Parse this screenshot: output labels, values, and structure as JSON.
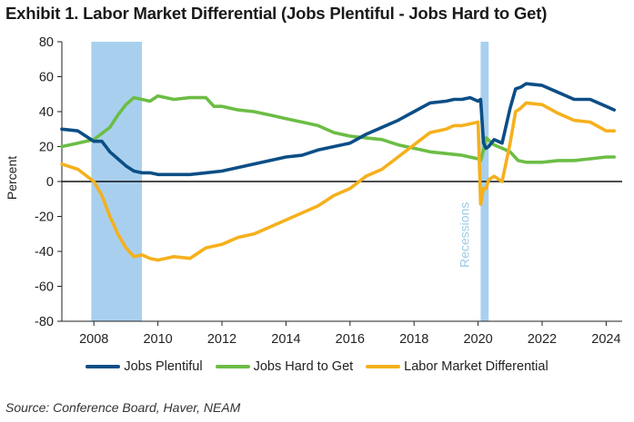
{
  "title": "Exhibit 1. Labor Market Differential (Jobs Plentiful - Jobs Hard to Get)",
  "source": "Source: Conference Board, Haver, NEAM",
  "chart_data": {
    "type": "line",
    "ylabel": "Percent",
    "ylim": [
      -80,
      80
    ],
    "yticks": [
      -80,
      -60,
      -40,
      -20,
      0,
      20,
      40,
      60,
      80
    ],
    "xlim": [
      2007,
      2024.5
    ],
    "xticks": [
      2008,
      2010,
      2012,
      2014,
      2016,
      2018,
      2020,
      2022,
      2024
    ],
    "grid": false,
    "legend_position": "bottom",
    "recessions": [
      {
        "start": 2007.92,
        "end": 2009.5
      },
      {
        "start": 2020.08,
        "end": 2020.33,
        "label": "Recessions"
      }
    ],
    "recession_color": "#a8d0ee",
    "series": [
      {
        "name": "Jobs Plentiful",
        "color": "#0c4e86",
        "x": [
          2007.0,
          2007.5,
          2008.0,
          2008.25,
          2008.5,
          2008.75,
          2009.0,
          2009.25,
          2009.5,
          2009.75,
          2010.0,
          2010.5,
          2011.0,
          2011.5,
          2012.0,
          2012.5,
          2013.0,
          2013.5,
          2014.0,
          2014.5,
          2015.0,
          2015.5,
          2016.0,
          2016.5,
          2017.0,
          2017.5,
          2018.0,
          2018.5,
          2019.0,
          2019.25,
          2019.5,
          2019.75,
          2020.0,
          2020.08,
          2020.17,
          2020.25,
          2020.33,
          2020.5,
          2020.75,
          2021.0,
          2021.17,
          2021.33,
          2021.5,
          2022.0,
          2022.5,
          2023.0,
          2023.5,
          2024.0,
          2024.25
        ],
        "values": [
          30,
          29,
          23,
          23,
          17,
          13,
          9,
          6,
          5,
          5,
          4,
          4,
          4,
          5,
          6,
          8,
          10,
          12,
          14,
          15,
          18,
          20,
          22,
          27,
          31,
          35,
          40,
          45,
          46,
          47,
          47,
          48,
          46,
          47,
          22,
          19,
          20,
          24,
          22,
          42,
          53,
          54,
          56,
          55,
          51,
          47,
          47,
          43,
          41
        ]
      },
      {
        "name": "Jobs Hard to Get",
        "color": "#6cbd45",
        "x": [
          2007.0,
          2007.5,
          2008.0,
          2008.5,
          2008.75,
          2009.0,
          2009.25,
          2009.5,
          2009.75,
          2010.0,
          2010.5,
          2011.0,
          2011.5,
          2011.75,
          2012.0,
          2012.5,
          2013.0,
          2013.5,
          2014.0,
          2014.5,
          2015.0,
          2015.5,
          2016.0,
          2016.5,
          2017.0,
          2017.5,
          2018.0,
          2018.5,
          2019.0,
          2019.5,
          2020.0,
          2020.08,
          2020.17,
          2020.25,
          2020.5,
          2020.75,
          2021.0,
          2021.25,
          2021.5,
          2022.0,
          2022.5,
          2023.0,
          2023.5,
          2024.0,
          2024.25
        ],
        "values": [
          20,
          22,
          24,
          31,
          38,
          44,
          48,
          47,
          46,
          49,
          47,
          48,
          48,
          43,
          43,
          41,
          40,
          38,
          36,
          34,
          32,
          28,
          26,
          25,
          24,
          21,
          19,
          17,
          16,
          15,
          13,
          12,
          18,
          25,
          21,
          19,
          17,
          12,
          11,
          11,
          12,
          12,
          13,
          14,
          14
        ]
      },
      {
        "name": "Labor Market Differential",
        "color": "#f5b01c",
        "x": [
          2007.0,
          2007.5,
          2008.0,
          2008.25,
          2008.5,
          2008.75,
          2009.0,
          2009.25,
          2009.5,
          2009.75,
          2010.0,
          2010.5,
          2011.0,
          2011.5,
          2012.0,
          2012.5,
          2013.0,
          2013.5,
          2014.0,
          2014.5,
          2015.0,
          2015.5,
          2016.0,
          2016.5,
          2017.0,
          2017.5,
          2018.0,
          2018.5,
          2019.0,
          2019.25,
          2019.5,
          2019.75,
          2020.0,
          2020.08,
          2020.17,
          2020.25,
          2020.33,
          2020.5,
          2020.75,
          2021.0,
          2021.17,
          2021.33,
          2021.5,
          2022.0,
          2022.5,
          2023.0,
          2023.5,
          2024.0,
          2024.25
        ],
        "values": [
          10,
          7,
          0,
          -8,
          -20,
          -30,
          -38,
          -43,
          -42,
          -44,
          -45,
          -43,
          -44,
          -38,
          -36,
          -32,
          -30,
          -26,
          -22,
          -18,
          -14,
          -8,
          -4,
          3,
          7,
          14,
          21,
          28,
          30,
          32,
          32,
          33,
          34,
          -13,
          -4,
          -4,
          1,
          3,
          0,
          22,
          40,
          42,
          45,
          44,
          39,
          35,
          34,
          29,
          29
        ]
      }
    ]
  }
}
